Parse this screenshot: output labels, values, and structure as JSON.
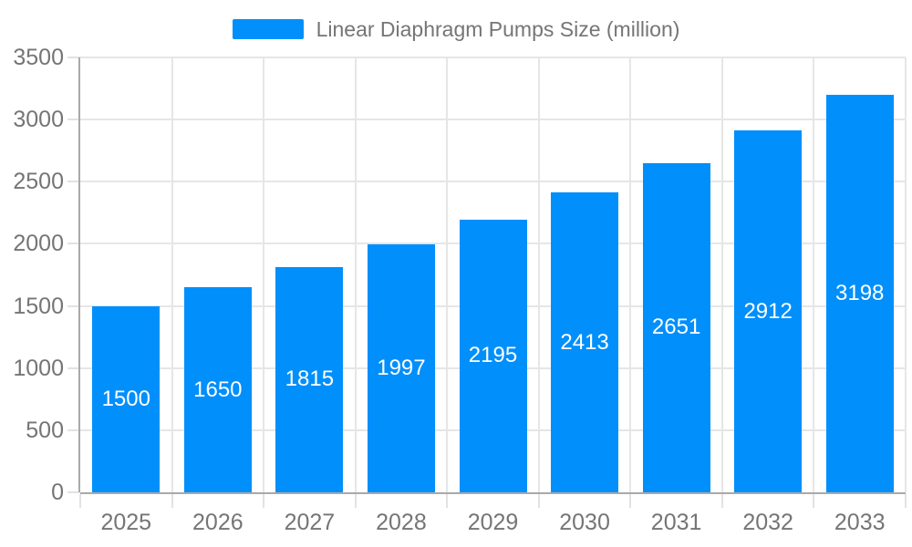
{
  "legend": {
    "label": "Linear Diaphragm Pumps Size (million)"
  },
  "colors": {
    "bar": "#008FFB",
    "bar_label": "#ffffff",
    "gridline": "#e6e6e6",
    "tick": "#e2e2e2",
    "axis_line": "#a9a9a9",
    "axis_text": "#757575"
  },
  "chart_data": {
    "type": "bar",
    "title": "Linear Diaphragm Pumps Size (million)",
    "categories": [
      "2025",
      "2026",
      "2027",
      "2028",
      "2029",
      "2030",
      "2031",
      "2032",
      "2033"
    ],
    "values": [
      1500,
      1650,
      1815,
      1997,
      2195,
      2413,
      2651,
      2912,
      3198
    ],
    "xlabel": "",
    "ylabel": "",
    "ylim": [
      0,
      3500
    ],
    "yticks": [
      0,
      500,
      1000,
      1500,
      2000,
      2500,
      3000,
      3500
    ],
    "grid": true,
    "legend_position": "top",
    "bar_labels_shown": true,
    "bar_label_position": "center"
  }
}
